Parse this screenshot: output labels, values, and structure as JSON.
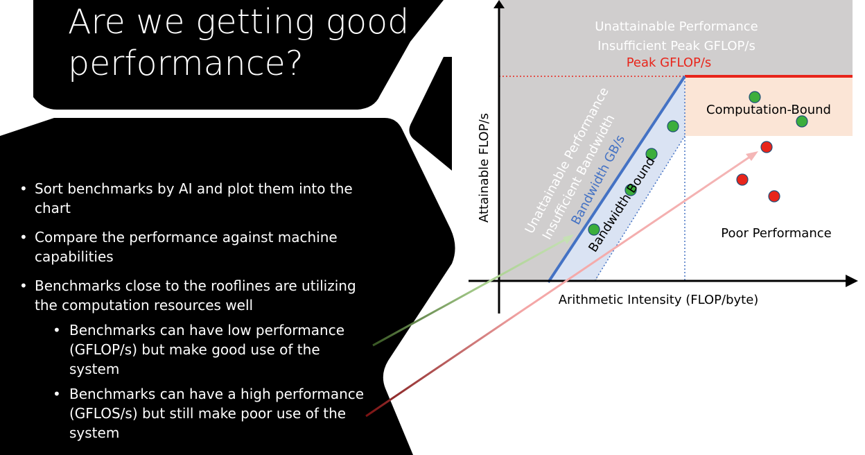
{
  "slide": {
    "title": "Are we getting good performance?",
    "bullets": [
      {
        "text": "Sort benchmarks by AI and plot them into the chart"
      },
      {
        "text": "Compare the performance against machine capabilities"
      },
      {
        "text": "Benchmarks close to the rooflines are utilizing the computation resources well",
        "sub": [
          "Benchmarks can have low performance (GFLOP/s) but make good use of the system",
          "Benchmarks can have a high performance (GFLOS/s) but still make poor use of the system"
        ]
      }
    ]
  },
  "diagram": {
    "region_unattainable_top": "Unattainable Performance",
    "region_unattainable_top_2": "Insufficient Peak GFLOP/s",
    "peak_label": "Peak GFLOP/s",
    "region_unattainable_left": "Unattainable Performance",
    "region_unattainable_left_2": "Insufficient Bandwidth",
    "bandwidth_label": "Bandwidth GB/s",
    "bandwidth_bound_label": "Bandwidth Bound",
    "computation_bound_label": "Computation-Bound",
    "poor_performance_label": "Poor Performance",
    "x_axis_label": "Arithmetic Intensity (FLOP/byte)",
    "y_axis_label": "Attainable FLOP/s",
    "colors": {
      "slide_black": "#000000",
      "unattainable_gray": "#d0cece",
      "peak_red": "#e8251b",
      "bandwidth_blue": "#4472c4",
      "bandwidth_fill": "#dae3f3",
      "compute_fill": "#fbe5d6",
      "good_point_green": "#3cae3c",
      "poor_point_red": "#e8251b",
      "arrow_green": "#a9d08e",
      "arrow_red": "#f4b6b6"
    }
  }
}
